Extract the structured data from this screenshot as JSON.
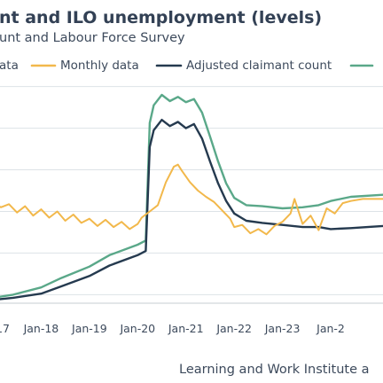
{
  "chart_data": {
    "type": "line",
    "title": "nt and ILO unemployment (levels)",
    "subtitle": "unt and Labour Force Survey",
    "source": "Learning and Work Institute a",
    "xlim": [
      "2017-01",
      "2025-02"
    ],
    "ylim": [
      0.55,
      2.85
    ],
    "x_ticks": [
      {
        "label": "17",
        "x": "2017-01"
      },
      {
        "label": "Jan-18",
        "x": "2018-01"
      },
      {
        "label": "Jan-19",
        "x": "2019-01"
      },
      {
        "label": "Jan-20",
        "x": "2020-01"
      },
      {
        "label": "Jan-21",
        "x": "2021-01"
      },
      {
        "label": "Jan-22",
        "x": "2022-01"
      },
      {
        "label": "Jan-23",
        "x": "2023-01"
      },
      {
        "label": "Jan-2",
        "x": "2024-01"
      }
    ],
    "y_gridlines": [
      0.7,
      1.1,
      1.5,
      1.9,
      2.3,
      2.7
    ],
    "legend": {
      "placement": "top",
      "entries": [
        {
          "label": "ata",
          "series": "ilo"
        },
        {
          "label": "Monthly data",
          "series": "monthly"
        },
        {
          "label": "Adjusted claimant count",
          "series": "adjusted"
        },
        {
          "label": "",
          "series": "claimant"
        }
      ]
    },
    "series": [
      {
        "key": "monthly",
        "name": "Monthly data",
        "color": "#f2b84b",
        "points": [
          [
            "2017-01",
            1.58
          ],
          [
            "2017-03",
            1.54
          ],
          [
            "2017-05",
            1.57
          ],
          [
            "2017-07",
            1.49
          ],
          [
            "2017-09",
            1.55
          ],
          [
            "2017-11",
            1.46
          ],
          [
            "2018-01",
            1.52
          ],
          [
            "2018-03",
            1.44
          ],
          [
            "2018-05",
            1.5
          ],
          [
            "2018-07",
            1.41
          ],
          [
            "2018-09",
            1.47
          ],
          [
            "2018-11",
            1.39
          ],
          [
            "2019-01",
            1.43
          ],
          [
            "2019-03",
            1.36
          ],
          [
            "2019-05",
            1.42
          ],
          [
            "2019-07",
            1.35
          ],
          [
            "2019-09",
            1.4
          ],
          [
            "2019-11",
            1.33
          ],
          [
            "2020-01",
            1.38
          ],
          [
            "2020-02",
            1.44
          ],
          [
            "2020-04",
            1.5
          ],
          [
            "2020-06",
            1.56
          ],
          [
            "2020-08",
            1.78
          ],
          [
            "2020-10",
            1.93
          ],
          [
            "2020-11",
            1.95
          ],
          [
            "2020-12",
            1.89
          ],
          [
            "2021-02",
            1.78
          ],
          [
            "2021-04",
            1.7
          ],
          [
            "2021-06",
            1.64
          ],
          [
            "2021-08",
            1.59
          ],
          [
            "2021-10",
            1.51
          ],
          [
            "2021-12",
            1.43
          ],
          [
            "2022-01",
            1.35
          ],
          [
            "2022-03",
            1.37
          ],
          [
            "2022-05",
            1.29
          ],
          [
            "2022-07",
            1.33
          ],
          [
            "2022-09",
            1.28
          ],
          [
            "2022-11",
            1.36
          ],
          [
            "2023-01",
            1.4
          ],
          [
            "2023-03",
            1.48
          ],
          [
            "2023-04",
            1.62
          ],
          [
            "2023-06",
            1.38
          ],
          [
            "2023-08",
            1.46
          ],
          [
            "2023-10",
            1.32
          ],
          [
            "2023-12",
            1.53
          ],
          [
            "2024-02",
            1.48
          ],
          [
            "2024-04",
            1.58
          ],
          [
            "2024-06",
            1.6
          ],
          [
            "2024-09",
            1.62
          ],
          [
            "2025-02",
            1.62
          ]
        ]
      },
      {
        "key": "adjusted",
        "name": "Adjusted claimant count",
        "color": "#253a4f",
        "points": [
          [
            "2017-01",
            0.65
          ],
          [
            "2017-06",
            0.67
          ],
          [
            "2018-01",
            0.71
          ],
          [
            "2018-06",
            0.78
          ],
          [
            "2019-01",
            0.88
          ],
          [
            "2019-06",
            0.98
          ],
          [
            "2020-01",
            1.08
          ],
          [
            "2020-03",
            1.12
          ],
          [
            "2020-04",
            2.12
          ],
          [
            "2020-05",
            2.28
          ],
          [
            "2020-07",
            2.38
          ],
          [
            "2020-09",
            2.32
          ],
          [
            "2020-11",
            2.36
          ],
          [
            "2021-01",
            2.3
          ],
          [
            "2021-03",
            2.34
          ],
          [
            "2021-05",
            2.2
          ],
          [
            "2021-07",
            1.98
          ],
          [
            "2021-09",
            1.77
          ],
          [
            "2021-11",
            1.6
          ],
          [
            "2022-01",
            1.48
          ],
          [
            "2022-04",
            1.41
          ],
          [
            "2022-08",
            1.39
          ],
          [
            "2023-01",
            1.37
          ],
          [
            "2023-06",
            1.35
          ],
          [
            "2023-10",
            1.35
          ],
          [
            "2024-01",
            1.33
          ],
          [
            "2024-06",
            1.34
          ],
          [
            "2025-02",
            1.36
          ]
        ]
      },
      {
        "key": "claimant",
        "name": "",
        "color": "#5aa889",
        "points": [
          [
            "2017-01",
            0.67
          ],
          [
            "2017-06",
            0.7
          ],
          [
            "2018-01",
            0.77
          ],
          [
            "2018-06",
            0.86
          ],
          [
            "2019-01",
            0.97
          ],
          [
            "2019-06",
            1.08
          ],
          [
            "2020-01",
            1.18
          ],
          [
            "2020-03",
            1.22
          ],
          [
            "2020-04",
            2.35
          ],
          [
            "2020-05",
            2.52
          ],
          [
            "2020-07",
            2.62
          ],
          [
            "2020-09",
            2.56
          ],
          [
            "2020-11",
            2.6
          ],
          [
            "2021-01",
            2.55
          ],
          [
            "2021-03",
            2.58
          ],
          [
            "2021-05",
            2.45
          ],
          [
            "2021-07",
            2.22
          ],
          [
            "2021-09",
            1.98
          ],
          [
            "2021-11",
            1.77
          ],
          [
            "2022-01",
            1.63
          ],
          [
            "2022-04",
            1.56
          ],
          [
            "2022-08",
            1.55
          ],
          [
            "2023-01",
            1.53
          ],
          [
            "2023-06",
            1.54
          ],
          [
            "2023-10",
            1.56
          ],
          [
            "2024-01",
            1.6
          ],
          [
            "2024-06",
            1.64
          ],
          [
            "2025-02",
            1.66
          ]
        ]
      }
    ]
  }
}
